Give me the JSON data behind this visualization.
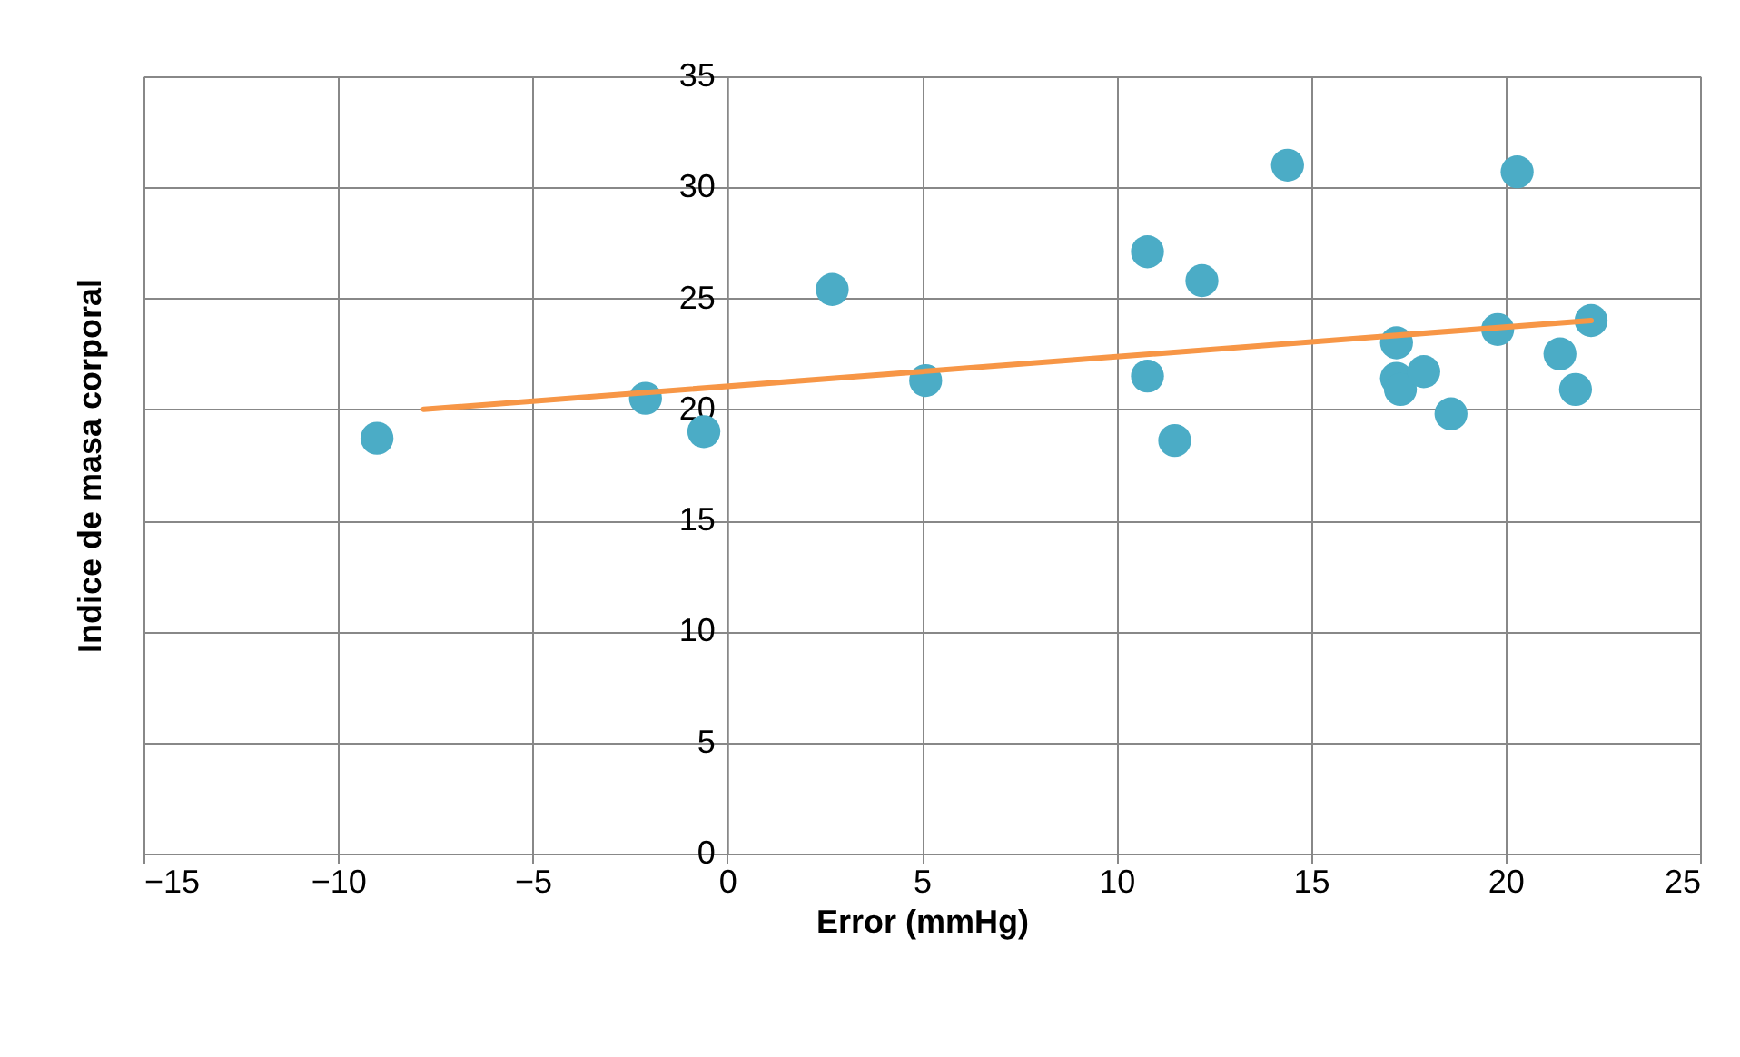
{
  "chart_data": {
    "type": "scatter",
    "xlabel": "Error (mmHg)",
    "ylabel": "Indice de masa corporal",
    "xlim": [
      -15,
      25
    ],
    "xticks": [
      -15,
      -10,
      -5,
      0,
      5,
      10,
      15,
      20,
      25
    ],
    "ylim": [
      0,
      35
    ],
    "yticks": [
      0,
      5,
      10,
      15,
      20,
      25,
      30,
      35
    ],
    "grid": true,
    "series": [
      {
        "color": "#4bacc6",
        "marker": "circle",
        "x": [
          -9.0,
          -2.1,
          -0.6,
          2.7,
          5.1,
          10.8,
          10.8,
          11.5,
          12.2,
          14.4,
          17.2,
          17.2,
          17.3,
          17.9,
          18.6,
          19.8,
          20.3,
          21.4,
          21.8,
          22.2
        ],
        "values": [
          18.7,
          20.5,
          19.0,
          25.4,
          21.3,
          27.1,
          21.5,
          18.6,
          25.8,
          31.0,
          23.0,
          21.4,
          20.9,
          21.7,
          19.8,
          23.6,
          30.7,
          22.5,
          20.9,
          24.0
        ]
      },
      {
        "type": "line",
        "color": "#f79646",
        "x": [
          -7.8,
          22.2
        ],
        "values": [
          20.0,
          24.0
        ]
      }
    ]
  }
}
